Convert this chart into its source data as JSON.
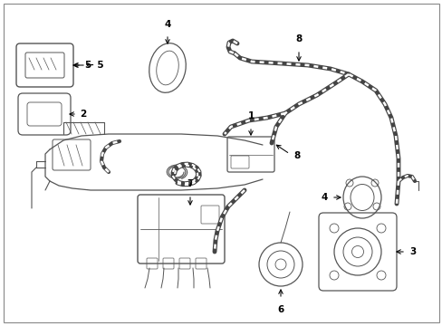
{
  "bg_color": "#ffffff",
  "line_color": "#555555",
  "label_color": "#000000",
  "fig_width": 4.89,
  "fig_height": 3.6,
  "dpi": 100,
  "border_color": "#aaaaaa",
  "lw_main": 0.7,
  "lw_thick": 2.2,
  "lw_ribbed_outer": 3.5,
  "lw_ribbed_inner": 1.8,
  "label_fontsize": 7.5
}
